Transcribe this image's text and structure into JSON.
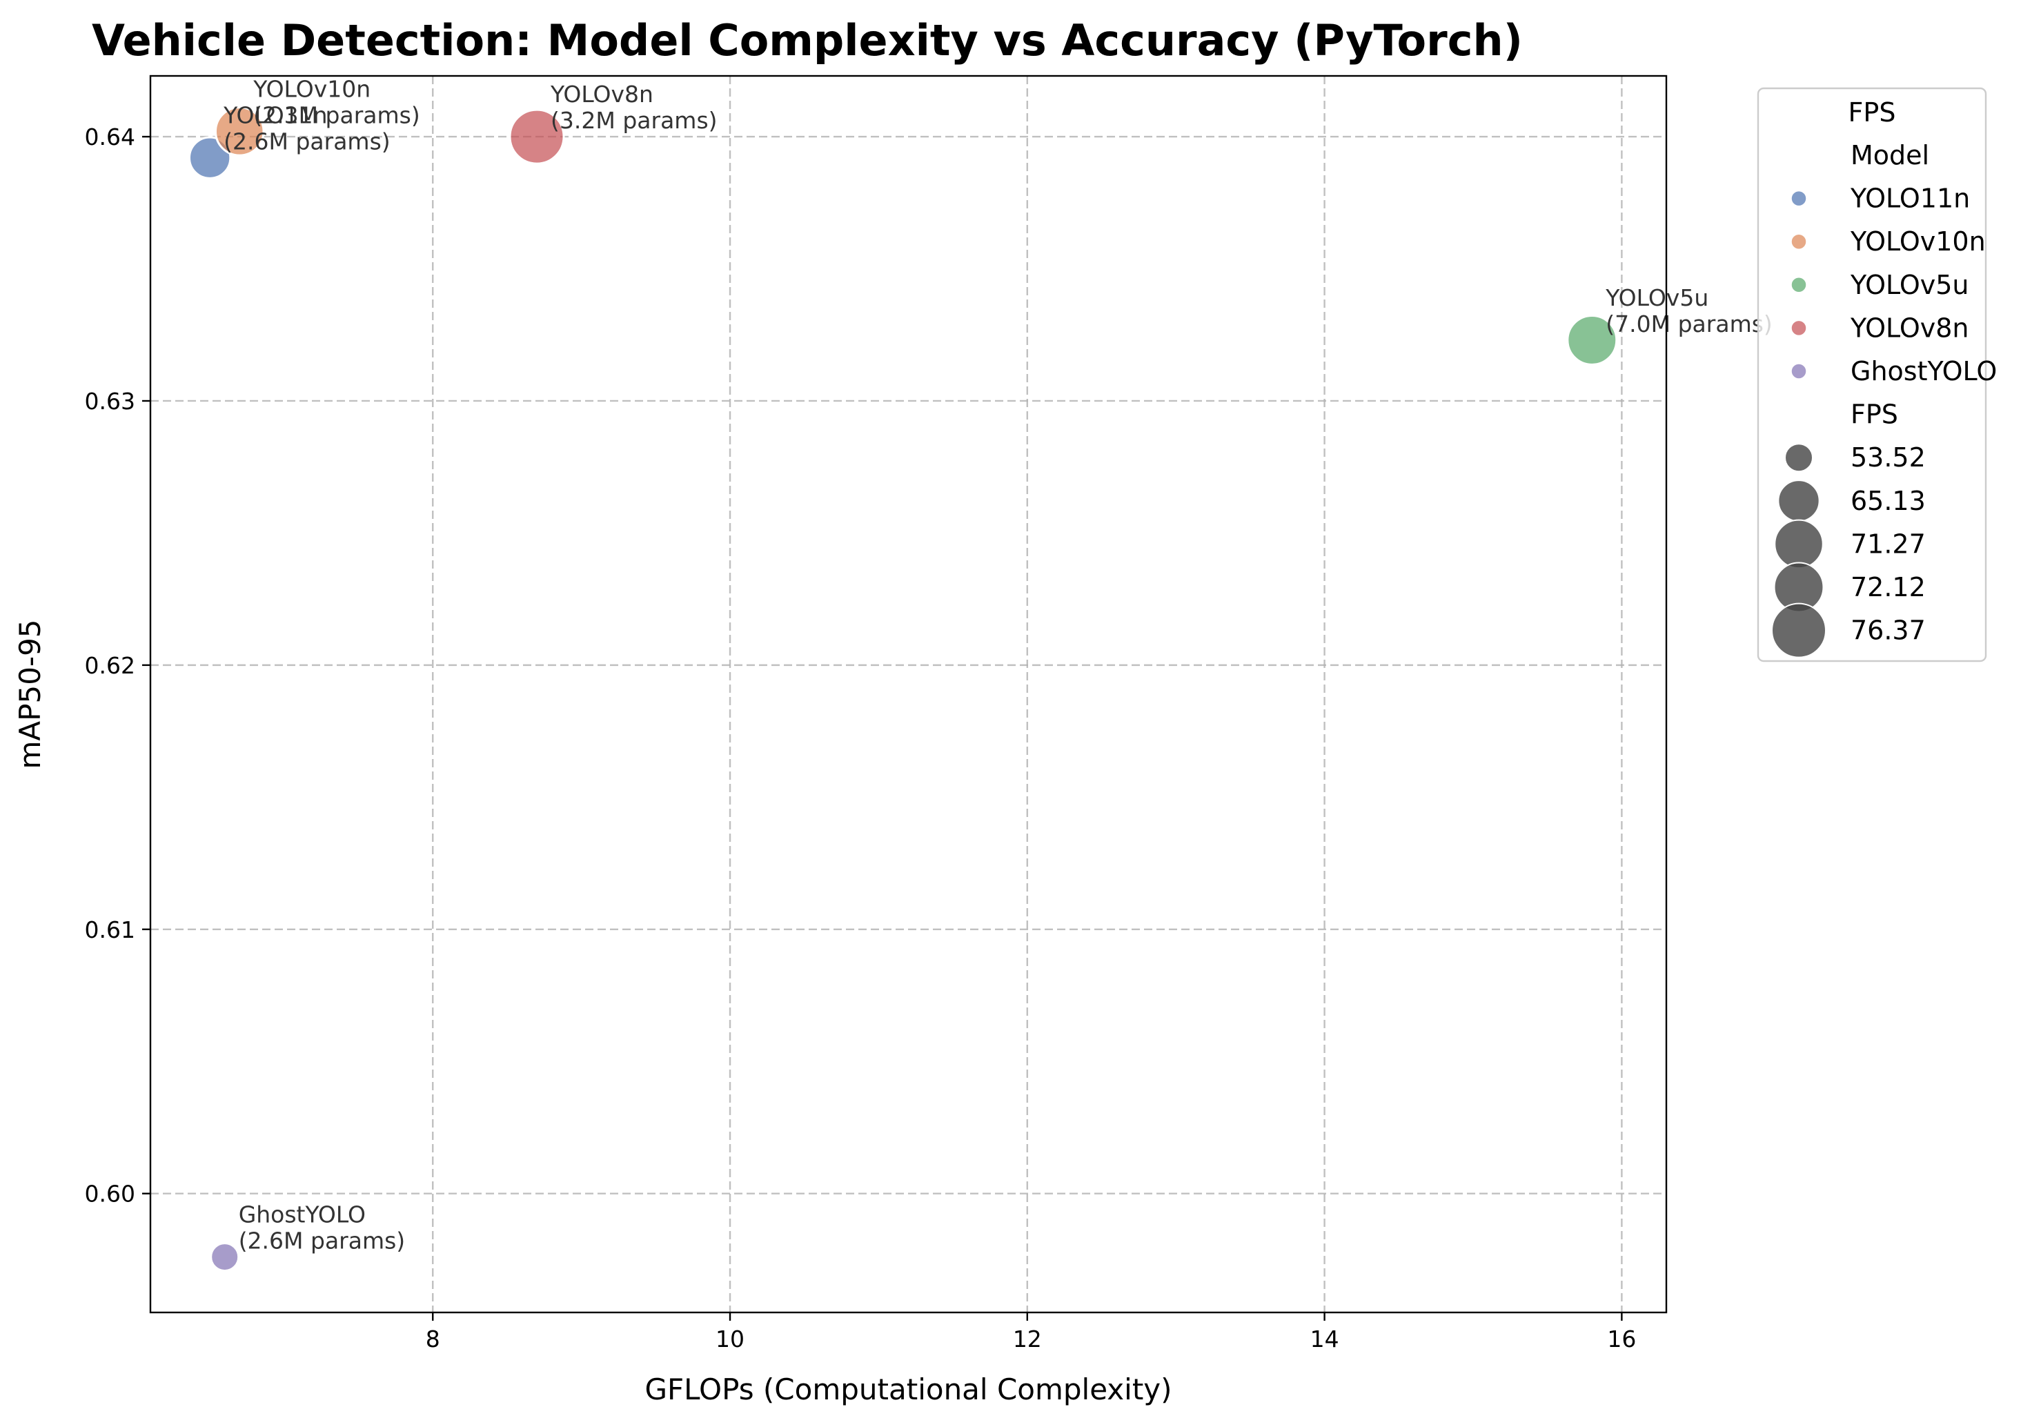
{
  "chart_data": {
    "type": "scatter",
    "title": "Vehicle Detection: Model Complexity vs Accuracy (PyTorch)",
    "xlabel": "GFLOPs (Computational Complexity)",
    "ylabel": "mAP50-95",
    "xlim": [
      6.1,
      16.3
    ],
    "ylim": [
      0.5955,
      0.6423
    ],
    "xticks": [
      8,
      10,
      12,
      14,
      16
    ],
    "xtick_labels": [
      "8",
      "10",
      "12",
      "14",
      "16"
    ],
    "yticks": [
      0.6,
      0.61,
      0.62,
      0.63,
      0.64
    ],
    "ytick_labels": [
      "0.60",
      "0.61",
      "0.62",
      "0.63",
      "0.64"
    ],
    "grid": true,
    "legend_position": "outside-right",
    "points": [
      {
        "model": "YOLO11n",
        "x": 6.5,
        "y": 0.6392,
        "fps": 65.13,
        "color": "#4c72b0",
        "label_line1": "YOLO11n",
        "label_line2": "(2.6M params)"
      },
      {
        "model": "YOLOv10n",
        "x": 6.7,
        "y": 0.6402,
        "fps": 71.27,
        "color": "#dd8452",
        "label_line1": "YOLOv10n",
        "label_line2": "(2.3M params)"
      },
      {
        "model": "YOLOv5u",
        "x": 15.8,
        "y": 0.6323,
        "fps": 72.12,
        "color": "#55a868",
        "label_line1": "YOLOv5u",
        "label_line2": "(7.0M params)"
      },
      {
        "model": "YOLOv8n",
        "x": 8.7,
        "y": 0.64,
        "fps": 76.37,
        "color": "#c44e52",
        "label_line1": "YOLOv8n",
        "label_line2": "(3.2M params)"
      },
      {
        "model": "GhostYOLO",
        "x": 6.6,
        "y": 0.5976,
        "fps": 53.52,
        "color": "#8172b3",
        "label_line1": "GhostYOLO",
        "label_line2": "(2.6M params)"
      }
    ],
    "legend": {
      "title": "FPS",
      "hue_title": "Model",
      "hue_entries": [
        {
          "name": "YOLO11n",
          "color": "#4c72b0"
        },
        {
          "name": "YOLOv10n",
          "color": "#dd8452"
        },
        {
          "name": "YOLOv5u",
          "color": "#55a868"
        },
        {
          "name": "YOLOv8n",
          "color": "#c44e52"
        },
        {
          "name": "GhostYOLO",
          "color": "#8172b3"
        }
      ],
      "size_title": "FPS",
      "size_entries": [
        "53.52",
        "65.13",
        "71.27",
        "72.12",
        "76.37"
      ]
    }
  }
}
